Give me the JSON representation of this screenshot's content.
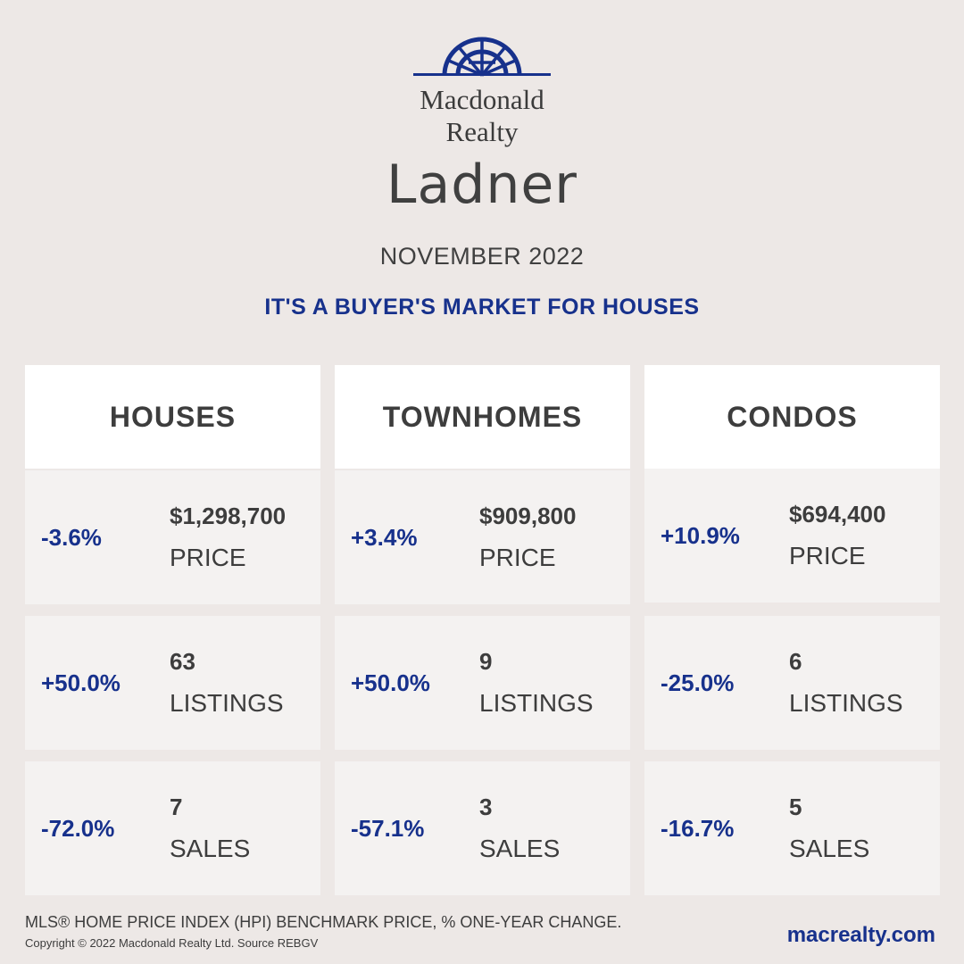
{
  "brand": {
    "logo_line1": "Macdonald",
    "logo_line2": "Realty",
    "color": "#17318c"
  },
  "city": "Ladner",
  "month": "NOVEMBER 2022",
  "headline": "IT'S A BUYER'S MARKET FOR HOUSES",
  "columns": [
    {
      "title": "HOUSES",
      "price": {
        "change": "-3.6%",
        "value": "$1,298,700",
        "label": "PRICE"
      },
      "listings": {
        "change": "+50.0%",
        "value": "63",
        "label": "LISTINGS"
      },
      "sales": {
        "change": "-72.0%",
        "value": "7",
        "label": "SALES"
      }
    },
    {
      "title": "TOWNHOMES",
      "price": {
        "change": "+3.4%",
        "value": "$909,800",
        "label": "PRICE"
      },
      "listings": {
        "change": "+50.0%",
        "value": "9",
        "label": "LISTINGS"
      },
      "sales": {
        "change": "-57.1%",
        "value": "3",
        "label": "SALES"
      }
    },
    {
      "title": "CONDOS",
      "price": {
        "change": "+10.9%",
        "value": "$694,400",
        "label": "PRICE"
      },
      "listings": {
        "change": "-25.0%",
        "value": "6",
        "label": "LISTINGS"
      },
      "sales": {
        "change": "-16.7%",
        "value": "5",
        "label": "SALES"
      }
    }
  ],
  "footer": {
    "note": "MLS® HOME PRICE INDEX (HPI) BENCHMARK PRICE, % ONE-YEAR CHANGE.",
    "copyright": "Copyright © 2022 Macdonald Realty Ltd. Source REBGV",
    "website": "macrealty.com"
  }
}
